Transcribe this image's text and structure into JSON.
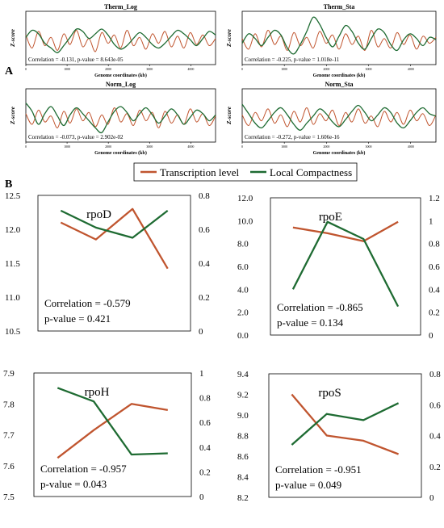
{
  "panel_labels": {
    "a": "A",
    "b": "B"
  },
  "legend": {
    "items": [
      {
        "label": "Transcription level",
        "color": "#c0552f"
      },
      {
        "label": "Local Compactness",
        "color": "#1e6b32"
      }
    ]
  },
  "colors": {
    "transcription": "#c0552f",
    "compactness": "#1e6b32",
    "axis": "#000000"
  },
  "chart_data": [
    {
      "type": "line",
      "title": "Therm_Log",
      "xlabel": "Genome coordinates (kb)",
      "ylabel": "Z-score",
      "xlim": [
        0,
        4600
      ],
      "ylim": [
        -2,
        2.5
      ],
      "x_ticks": [
        "0",
        "1000",
        "2000",
        "3000",
        "4000"
      ],
      "annotation": "Correlation = -0.131, p-value = 8.643e-05",
      "series": [
        {
          "name": "Transcription level",
          "values": [
            0.5,
            -0.6,
            0.8,
            -0.4,
            0.3,
            -0.8,
            0.6,
            -0.3,
            0.9,
            -0.5,
            0.2,
            -0.9,
            0.7,
            -0.2,
            0.5,
            -0.6,
            0.9,
            -0.4,
            0.3,
            -0.7,
            0.6,
            -0.2,
            0.8,
            -0.5,
            0.4,
            -0.6,
            0.7,
            -0.3,
            0.5,
            -0.4,
            0.2
          ]
        },
        {
          "name": "Local Compactness",
          "values": [
            0.3,
            0.9,
            0.6,
            -0.2,
            -0.6,
            -1.0,
            -0.4,
            0.3,
            1.0,
            0.8,
            0.2,
            0.6,
            1.0,
            0.5,
            -0.3,
            -0.7,
            -0.4,
            0.2,
            0.7,
            0.3,
            -0.3,
            -0.6,
            -0.2,
            0.4,
            0.9,
            0.6,
            0.1,
            -0.4,
            0.2,
            0.8,
            0.5
          ]
        }
      ]
    },
    {
      "type": "line",
      "title": "Therm_Sta",
      "xlabel": "Genome coordinates (kb)",
      "ylabel": "Z-score",
      "xlim": [
        0,
        4600
      ],
      "ylim": [
        -2,
        2.5
      ],
      "x_ticks": [
        "0",
        "1000",
        "2000",
        "3000",
        "4000"
      ],
      "annotation": "Correlation = -0.225, p-value = 1.018e-11",
      "series": [
        {
          "name": "Transcription level",
          "values": [
            0.2,
            -0.7,
            0.6,
            -0.5,
            0.9,
            -0.3,
            0.4,
            -0.8,
            0.7,
            -0.4,
            0.3,
            -0.6,
            0.8,
            -0.2,
            0.5,
            -0.7,
            0.6,
            -0.3,
            0.4,
            -0.8,
            0.9,
            -0.5,
            0.2,
            -0.6,
            0.7,
            -0.3,
            0.5,
            -0.7,
            0.4,
            -0.2,
            0.3
          ]
        },
        {
          "name": "Local Compactness",
          "values": [
            -0.2,
            0.6,
            0.2,
            -0.4,
            0.3,
            0.9,
            0.5,
            -0.6,
            -1.1,
            -0.3,
            0.8,
            2.0,
            1.4,
            0.3,
            -0.5,
            0.4,
            1.3,
            0.8,
            -0.2,
            -0.7,
            0.2,
            1.0,
            0.7,
            -0.3,
            -0.8,
            0.1,
            0.6,
            0.2,
            -0.4,
            0.3,
            0.1
          ]
        }
      ]
    },
    {
      "type": "line",
      "title": "Norm_Log",
      "xlabel": "Genome coordinates (kb)",
      "ylabel": "Z-score",
      "xlim": [
        0,
        4600
      ],
      "ylim": [
        -2,
        2.5
      ],
      "x_ticks": [
        "0",
        "1000",
        "2000",
        "3000",
        "4000"
      ],
      "annotation": "Correlation = -0.073, p-value = 2.902e-02",
      "series": [
        {
          "name": "Transcription level",
          "values": [
            0.4,
            -0.5,
            0.7,
            -0.3,
            0.2,
            -0.8,
            0.6,
            -0.4,
            0.8,
            -0.2,
            0.5,
            -0.7,
            0.3,
            -0.5,
            0.9,
            -0.3,
            0.4,
            -0.6,
            0.7,
            -0.2,
            0.5,
            -0.8,
            0.6,
            -0.4,
            0.3,
            -0.5,
            0.8,
            -0.3,
            0.4,
            -0.6,
            0.2
          ]
        },
        {
          "name": "Local Compactness",
          "values": [
            1.3,
            0.6,
            -0.5,
            0.4,
            1.0,
            0.2,
            -0.6,
            0.3,
            0.9,
            0.4,
            -0.2,
            -0.8,
            -1.2,
            -0.3,
            0.6,
            1.0,
            0.5,
            -0.2,
            0.4,
            0.9,
            0.3,
            -0.4,
            0.2,
            0.8,
            0.3,
            -0.5,
            0.1,
            0.7,
            0.4,
            -0.2,
            0.3
          ]
        }
      ]
    },
    {
      "type": "line",
      "title": "Norm_Sta",
      "xlabel": "Genome coordinates (kb)",
      "ylabel": "Z-score",
      "xlim": [
        0,
        4600
      ],
      "ylim": [
        -2,
        2.5
      ],
      "x_ticks": [
        "0",
        "1000",
        "2000",
        "3000",
        "4000"
      ],
      "annotation": "Correlation = -0.272, p-value = 1.606e-16",
      "series": [
        {
          "name": "Transcription level",
          "values": [
            0.3,
            -0.6,
            0.5,
            -0.2,
            0.8,
            -0.4,
            0.3,
            -0.7,
            0.6,
            -0.3,
            0.9,
            -0.5,
            0.4,
            -0.2,
            0.7,
            -0.6,
            0.5,
            -0.3,
            0.8,
            -0.4,
            0.2,
            -0.7,
            0.6,
            -0.3,
            0.5,
            -0.5,
            0.7,
            -0.2,
            0.4,
            -0.6,
            0.3
          ]
        },
        {
          "name": "Local Compactness",
          "values": [
            1.2,
            0.4,
            -0.4,
            -0.8,
            -0.2,
            0.5,
            0.9,
            0.3,
            -0.5,
            -1.0,
            -0.4,
            0.2,
            0.8,
            0.4,
            -0.3,
            -0.7,
            -0.1,
            0.6,
            1.1,
            0.5,
            -0.2,
            0.3,
            0.9,
            0.5,
            -0.4,
            -0.8,
            -0.2,
            0.5,
            0.9,
            0.4,
            0.2
          ]
        }
      ]
    },
    {
      "type": "line",
      "title": "rpoD",
      "annotation": [
        "Correlation = -0.579",
        "p-value =  0.421"
      ],
      "left_axis": {
        "ylim": [
          10.5,
          12.5
        ],
        "ticks": [
          "10.5",
          "11.0",
          "11.5",
          "12.0",
          "12.5"
        ]
      },
      "right_axis": {
        "ylim": [
          0,
          0.8
        ],
        "ticks": [
          "0",
          "0.2",
          "0.4",
          "0.6",
          "0.8"
        ]
      },
      "x": [
        1,
        2,
        3,
        4
      ],
      "series": [
        {
          "name": "Transcription level",
          "axis": "left",
          "values": [
            12.1,
            11.85,
            12.3,
            11.42
          ]
        },
        {
          "name": "Local Compactness",
          "axis": "right",
          "values": [
            0.71,
            0.61,
            0.55,
            0.71
          ]
        }
      ]
    },
    {
      "type": "line",
      "title": "rpoE",
      "annotation": [
        "Correlation = -0.865",
        "p-value =  0.134"
      ],
      "left_axis": {
        "ylim": [
          0,
          12
        ],
        "ticks": [
          "0.0",
          "2.0",
          "4.0",
          "6.0",
          "8.0",
          "10.0",
          "12.0"
        ]
      },
      "right_axis": {
        "ylim": [
          0,
          1.2
        ],
        "ticks": [
          "0",
          "0.2",
          "0.4",
          "0.6",
          "0.8",
          "1",
          "1.2"
        ]
      },
      "x": [
        1,
        2,
        3,
        4
      ],
      "series": [
        {
          "name": "Transcription level",
          "axis": "left",
          "values": [
            9.4,
            8.9,
            8.2,
            9.9
          ]
        },
        {
          "name": "Local Compactness",
          "axis": "right",
          "values": [
            0.4,
            0.99,
            0.84,
            0.25
          ]
        }
      ]
    },
    {
      "type": "line",
      "title": "rpoH",
      "annotation": [
        "Correlation = -0.957",
        "p-value =  0.043"
      ],
      "left_axis": {
        "ylim": [
          7.5,
          7.9
        ],
        "ticks": [
          "7.5",
          "7.6",
          "7.7",
          "7.8",
          "7.9"
        ]
      },
      "right_axis": {
        "ylim": [
          0,
          1
        ],
        "ticks": [
          "0",
          "0.2",
          "0.4",
          "0.6",
          "0.8",
          "1"
        ]
      },
      "x": [
        1,
        2,
        3,
        4
      ],
      "series": [
        {
          "name": "Transcription level",
          "axis": "left",
          "values": [
            7.625,
            7.715,
            7.8,
            7.78
          ]
        },
        {
          "name": "Local Compactness",
          "axis": "right",
          "values": [
            0.88,
            0.77,
            0.34,
            0.35
          ]
        }
      ]
    },
    {
      "type": "line",
      "title": "rpoS",
      "annotation": [
        "Correlation = -0.951",
        "p-value =  0.049"
      ],
      "left_axis": {
        "ylim": [
          8.2,
          9.4
        ],
        "ticks": [
          "8.2",
          "8.4",
          "8.6",
          "8.8",
          "9.0",
          "9.2",
          "9.4"
        ]
      },
      "right_axis": {
        "ylim": [
          0,
          0.8
        ],
        "ticks": [
          "0",
          "0.2",
          "0.4",
          "0.6",
          "0.8"
        ]
      },
      "x": [
        1,
        2,
        3,
        4
      ],
      "series": [
        {
          "name": "Transcription level",
          "axis": "left",
          "values": [
            9.2,
            8.8,
            8.75,
            8.62
          ]
        },
        {
          "name": "Local Compactness",
          "axis": "right",
          "values": [
            0.34,
            0.54,
            0.5,
            0.61
          ]
        }
      ]
    }
  ]
}
